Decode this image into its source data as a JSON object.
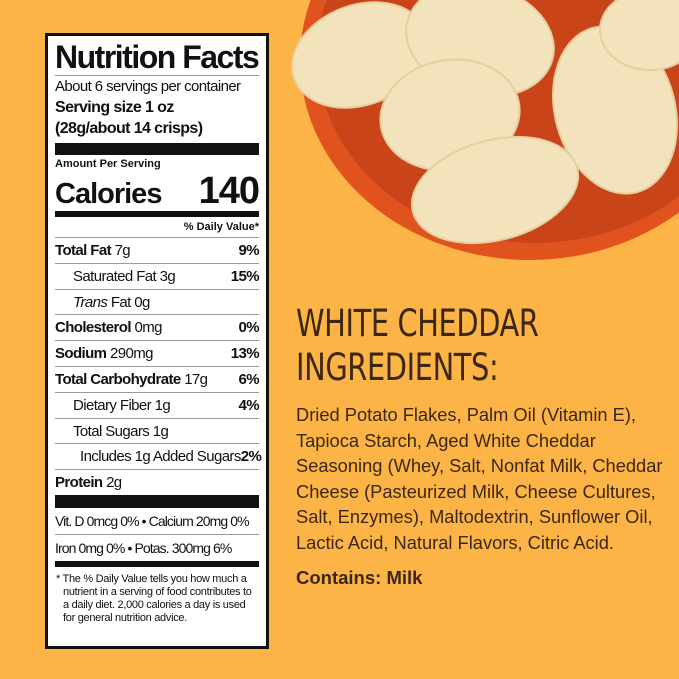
{
  "nutrition": {
    "title": "Nutrition Facts",
    "servings": "About 6 servings per container",
    "serving_size_line1": "Serving size 1 oz",
    "serving_size_line2": "(28g/about 14 crisps)",
    "amount_per_serving": "Amount Per Serving",
    "calories_label": "Calories",
    "calories_value": "140",
    "daily_value_header": "% Daily Value*",
    "rows": [
      {
        "name": "Total Fat",
        "amount": "7g",
        "dv": "9%"
      },
      {
        "name": "Saturated Fat",
        "amount": "3g",
        "dv": "15%"
      },
      {
        "name": "Trans",
        "amount": "Fat 0g",
        "dv": ""
      },
      {
        "name": "Cholesterol",
        "amount": "0mg",
        "dv": "0%"
      },
      {
        "name": "Sodium",
        "amount": "290mg",
        "dv": "13%"
      },
      {
        "name": "Total Carbohydrate",
        "amount": "17g",
        "dv": "6%"
      },
      {
        "name": "Dietary Fiber",
        "amount": "1g",
        "dv": "4%"
      },
      {
        "name": "Total Sugars",
        "amount": "1g",
        "dv": ""
      },
      {
        "name": "Includes 1g Added Sugars",
        "amount": "",
        "dv": "2%"
      },
      {
        "name": "Protein",
        "amount": "2g",
        "dv": ""
      }
    ],
    "vitamins_line1": "Vit. D 0mcg 0% • Calcium 20mg 0%",
    "vitamins_line2": "Iron 0mg 0% • Potas. 300mg 6%",
    "footnote": "* The % Daily Value tells you how much a nutrient in a serving of food contributes to a daily diet. 2,000 calories a day is used for general nutrition advice."
  },
  "ingredients": {
    "title_line1": "WHITE CHEDDAR",
    "title_line2": "INGREDIENTS:",
    "text": "Dried Potato Flakes, Palm Oil (Vitamin E), Tapioca Starch, Aged White Cheddar Seasoning (Whey, Salt, Nonfat Milk, Cheddar Cheese (Pasteurized Milk, Cheese Cultures, Salt, Enzymes), Maltodextrin, Sunflower Oil, Lactic Acid, Natural Flavors, Citric Acid.",
    "contains": "Contains: Milk"
  },
  "colors": {
    "background": "#fdb447",
    "bowl": "#e0531f",
    "crisp": "#f3e3bd",
    "text": "#3b2712"
  }
}
